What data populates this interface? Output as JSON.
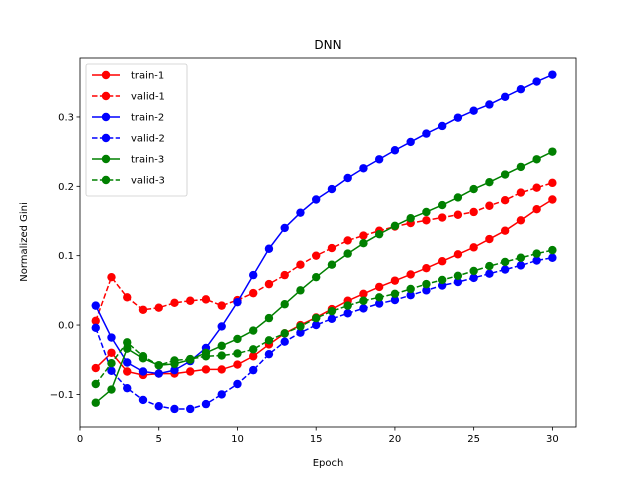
{
  "chart_data": {
    "type": "line",
    "title": "DNN",
    "xlabel": "Epoch",
    "ylabel": "Normalized Gini",
    "xlim": [
      0,
      31.5
    ],
    "ylim": [
      -0.147,
      0.385
    ],
    "xticks": [
      0,
      5,
      10,
      15,
      20,
      25,
      30
    ],
    "xtick_labels": [
      "0",
      "5",
      "10",
      "15",
      "20",
      "25",
      "30"
    ],
    "yticks": [
      -0.1,
      0.0,
      0.1,
      0.2,
      0.3
    ],
    "ytick_labels": [
      "−0.1",
      "0.0",
      "0.1",
      "0.2",
      "0.3"
    ],
    "grid": false,
    "legend_position": "top-left",
    "x": [
      1,
      2,
      3,
      4,
      5,
      6,
      7,
      8,
      9,
      10,
      11,
      12,
      13,
      14,
      15,
      16,
      17,
      18,
      19,
      20,
      21,
      22,
      23,
      24,
      25,
      26,
      27,
      28,
      29,
      30
    ],
    "series": [
      {
        "name": "train-1",
        "color": "#ff0000",
        "linestyle": "solid",
        "values": [
          -0.062,
          -0.04,
          -0.067,
          -0.072,
          -0.07,
          -0.07,
          -0.067,
          -0.064,
          -0.064,
          -0.057,
          -0.045,
          -0.028,
          -0.012,
          0.0,
          0.011,
          0.023,
          0.035,
          0.045,
          0.055,
          0.064,
          0.073,
          0.082,
          0.092,
          0.102,
          0.112,
          0.124,
          0.136,
          0.151,
          0.167,
          0.181
        ]
      },
      {
        "name": "valid-1",
        "color": "#ff0000",
        "linestyle": "dashed",
        "values": [
          0.006,
          0.069,
          0.04,
          0.022,
          0.025,
          0.032,
          0.035,
          0.037,
          0.028,
          0.036,
          0.046,
          0.059,
          0.072,
          0.087,
          0.1,
          0.111,
          0.122,
          0.129,
          0.136,
          0.142,
          0.147,
          0.151,
          0.155,
          0.159,
          0.163,
          0.172,
          0.18,
          0.191,
          0.198,
          0.205
        ]
      },
      {
        "name": "train-2",
        "color": "#0000ff",
        "linestyle": "solid",
        "values": [
          0.028,
          -0.018,
          -0.054,
          -0.067,
          -0.07,
          -0.065,
          -0.052,
          -0.033,
          -0.002,
          0.033,
          0.072,
          0.11,
          0.14,
          0.162,
          0.181,
          0.196,
          0.212,
          0.226,
          0.239,
          0.252,
          0.264,
          0.276,
          0.287,
          0.299,
          0.309,
          0.318,
          0.329,
          0.34,
          0.351,
          0.361
        ]
      },
      {
        "name": "valid-2",
        "color": "#0000ff",
        "linestyle": "dashed",
        "values": [
          -0.004,
          -0.066,
          -0.091,
          -0.108,
          -0.117,
          -0.121,
          -0.121,
          -0.114,
          -0.1,
          -0.085,
          -0.065,
          -0.042,
          -0.024,
          -0.011,
          0.0,
          0.009,
          0.017,
          0.024,
          0.031,
          0.036,
          0.043,
          0.05,
          0.057,
          0.062,
          0.068,
          0.074,
          0.08,
          0.086,
          0.093,
          0.097
        ]
      },
      {
        "name": "train-3",
        "color": "#008000",
        "linestyle": "solid",
        "values": [
          -0.112,
          -0.093,
          -0.034,
          -0.048,
          -0.058,
          -0.056,
          -0.05,
          -0.04,
          -0.03,
          -0.02,
          -0.008,
          0.01,
          0.03,
          0.05,
          0.069,
          0.087,
          0.103,
          0.118,
          0.131,
          0.143,
          0.154,
          0.163,
          0.173,
          0.184,
          0.196,
          0.206,
          0.217,
          0.228,
          0.239,
          0.25
        ]
      },
      {
        "name": "valid-3",
        "color": "#008000",
        "linestyle": "dashed",
        "values": [
          -0.085,
          -0.055,
          -0.025,
          -0.045,
          -0.058,
          -0.051,
          -0.049,
          -0.045,
          -0.044,
          -0.041,
          -0.035,
          -0.022,
          -0.012,
          -0.002,
          0.01,
          0.02,
          0.028,
          0.035,
          0.04,
          0.045,
          0.052,
          0.059,
          0.065,
          0.071,
          0.078,
          0.085,
          0.091,
          0.097,
          0.103,
          0.108
        ]
      }
    ]
  }
}
